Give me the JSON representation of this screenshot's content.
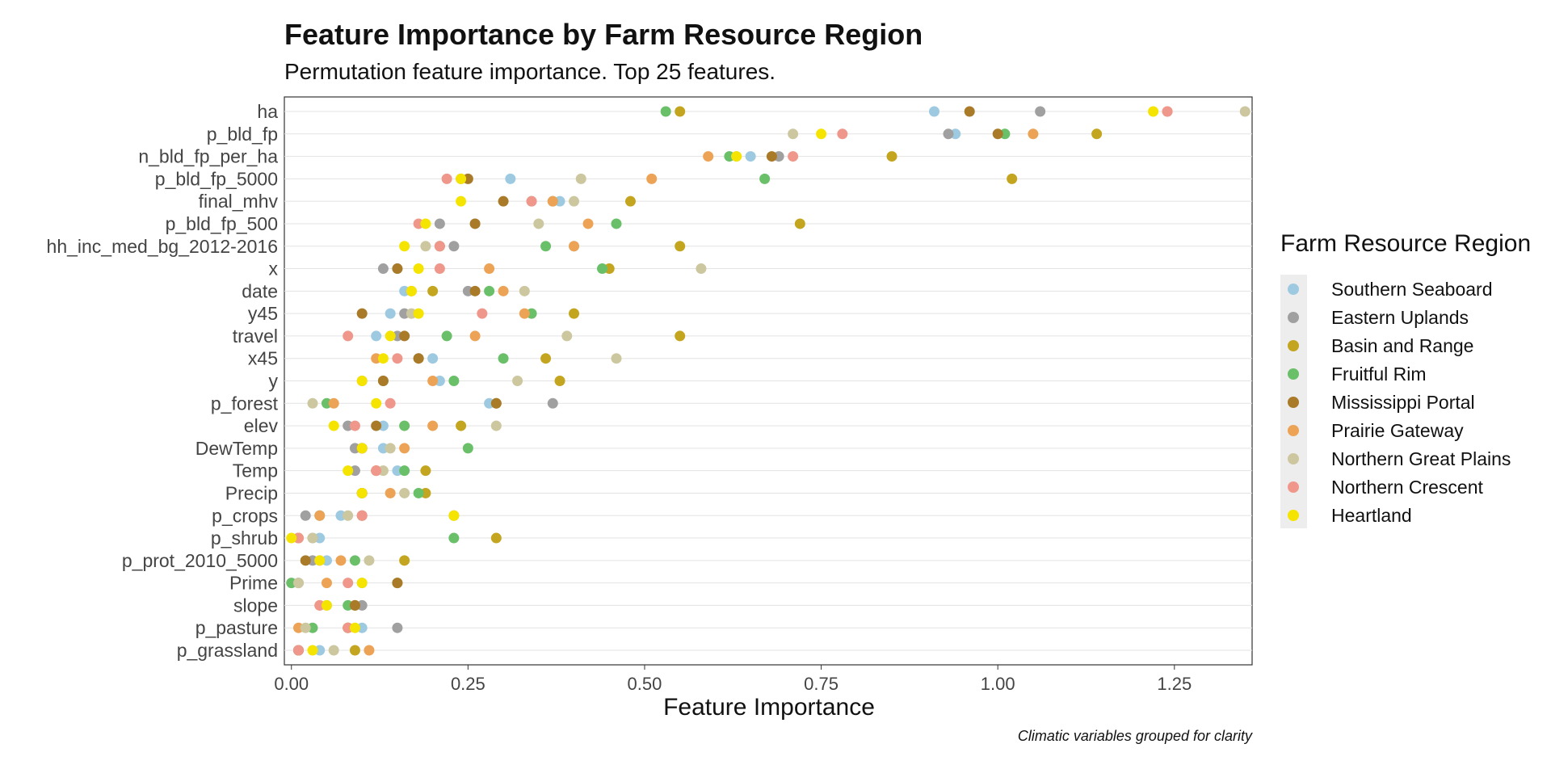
{
  "chart_data": {
    "type": "scatter",
    "title": "Feature Importance by Farm Resource Region",
    "subtitle": "Permutation feature importance. Top 25 features.",
    "xlabel": "Feature Importance",
    "ylabel": "",
    "caption": "Climatic variables grouped for clarity",
    "legend_title": "Farm Resource Region",
    "legend_position": "right",
    "grid": true,
    "xlim": [
      -0.01,
      1.36
    ],
    "x_ticks": [
      0.0,
      0.25,
      0.5,
      0.75,
      1.0,
      1.25
    ],
    "x_tick_labels": [
      "0.00",
      "0.25",
      "0.50",
      "0.75",
      "1.00",
      "1.25"
    ],
    "features": [
      "ha",
      "p_bld_fp",
      "n_bld_fp_per_ha",
      "p_bld_fp_5000",
      "final_mhv",
      "p_bld_fp_500",
      "hh_inc_med_bg_2012-2016",
      "x",
      "date",
      "y45",
      "travel",
      "x45",
      "y",
      "p_forest",
      "elev",
      "DewTemp",
      "Temp",
      "Precip",
      "p_crops",
      "p_shrub",
      "p_prot_2010_5000",
      "Prime",
      "slope",
      "p_pasture",
      "p_grassland"
    ],
    "series": [
      {
        "name": "Southern Seaboard",
        "color": "#9ecae1",
        "values": [
          0.91,
          0.94,
          0.65,
          0.31,
          0.38,
          0.26,
          0.4,
          0.15,
          0.16,
          0.14,
          0.12,
          0.2,
          0.21,
          0.28,
          0.13,
          0.13,
          0.15,
          0.1,
          0.07,
          0.04,
          0.05,
          0.1,
          0.05,
          0.1,
          0.04
        ]
      },
      {
        "name": "Eastern Uplands",
        "color": "#a0a0a0",
        "values": [
          1.06,
          0.93,
          0.69,
          0.24,
          0.34,
          0.21,
          0.23,
          0.13,
          0.25,
          0.16,
          0.15,
          0.18,
          0.13,
          0.37,
          0.08,
          0.09,
          0.09,
          0.1,
          0.02,
          0.03,
          0.03,
          0.01,
          0.1,
          0.15,
          0.01
        ]
      },
      {
        "name": "Basin and Range",
        "color": "#c4a520",
        "values": [
          0.55,
          1.14,
          0.85,
          1.02,
          0.48,
          0.72,
          0.55,
          0.45,
          0.2,
          0.4,
          0.55,
          0.36,
          0.38,
          0.29,
          0.24,
          0.1,
          0.19,
          0.19,
          0.23,
          0.29,
          0.16,
          0.15,
          0.09,
          0.08,
          0.09
        ]
      },
      {
        "name": "Fruitful Rim",
        "color": "#6abf69",
        "values": [
          0.53,
          1.01,
          0.62,
          0.67,
          0.37,
          0.46,
          0.36,
          0.44,
          0.28,
          0.34,
          0.22,
          0.3,
          0.23,
          0.05,
          0.16,
          0.25,
          0.16,
          0.18,
          0.04,
          0.23,
          0.09,
          0.0,
          0.08,
          0.03,
          0.01
        ]
      },
      {
        "name": "Mississippi Portal",
        "color": "#a97a28",
        "values": [
          0.96,
          1.0,
          0.68,
          0.25,
          0.3,
          0.26,
          0.21,
          0.15,
          0.26,
          0.1,
          0.16,
          0.18,
          0.13,
          0.29,
          0.12,
          0.1,
          0.12,
          0.1,
          0.1,
          0.01,
          0.02,
          0.15,
          0.09,
          0.08,
          0.01
        ]
      },
      {
        "name": "Prairie Gateway",
        "color": "#eda356",
        "values": [
          1.24,
          1.05,
          0.59,
          0.51,
          0.37,
          0.42,
          0.4,
          0.28,
          0.3,
          0.33,
          0.26,
          0.12,
          0.2,
          0.06,
          0.2,
          0.16,
          0.12,
          0.14,
          0.04,
          0.01,
          0.07,
          0.05,
          0.04,
          0.01,
          0.11
        ]
      },
      {
        "name": "Northern Great Plains",
        "color": "#cdc7a0",
        "values": [
          1.35,
          0.71,
          0.63,
          0.41,
          0.4,
          0.35,
          0.19,
          0.58,
          0.33,
          0.17,
          0.39,
          0.46,
          0.32,
          0.03,
          0.29,
          0.14,
          0.13,
          0.16,
          0.08,
          0.03,
          0.11,
          0.01,
          0.05,
          0.02,
          0.06
        ]
      },
      {
        "name": "Northern Crescent",
        "color": "#f0978c",
        "values": [
          1.24,
          0.78,
          0.71,
          0.22,
          0.34,
          0.18,
          0.21,
          0.21,
          0.17,
          0.27,
          0.08,
          0.15,
          0.1,
          0.14,
          0.09,
          0.1,
          0.12,
          0.1,
          0.1,
          0.01,
          0.04,
          0.08,
          0.04,
          0.08,
          0.01
        ]
      },
      {
        "name": "Heartland",
        "color": "#f5e400",
        "values": [
          1.22,
          0.75,
          0.63,
          0.24,
          0.24,
          0.19,
          0.16,
          0.18,
          0.17,
          0.18,
          0.14,
          0.13,
          0.1,
          0.12,
          0.06,
          0.1,
          0.08,
          0.1,
          0.23,
          0.0,
          0.04,
          0.1,
          0.05,
          0.09,
          0.03
        ]
      }
    ]
  }
}
